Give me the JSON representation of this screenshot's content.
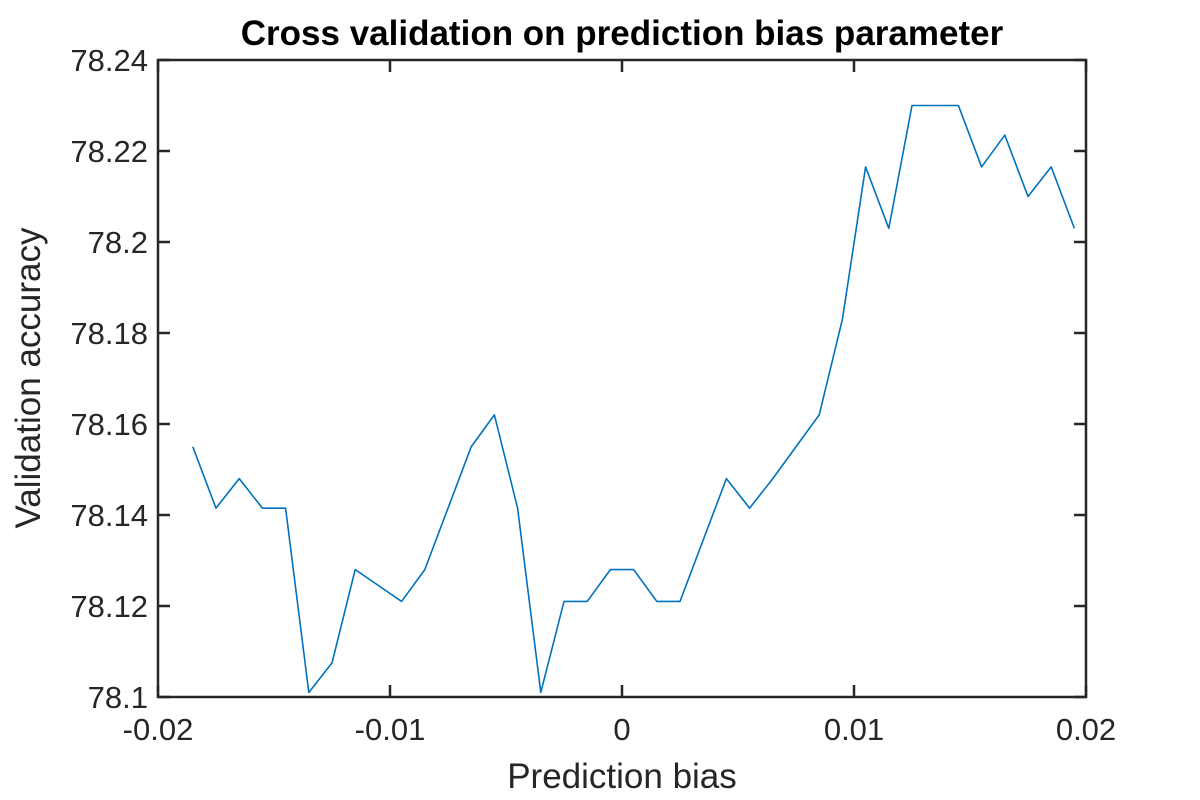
{
  "chart_data": {
    "type": "line",
    "title": "Cross validation on prediction bias parameter",
    "xlabel": "Prediction bias",
    "ylabel": "Validation accuracy",
    "xlim": [
      -0.02,
      0.02
    ],
    "ylim": [
      78.1,
      78.24
    ],
    "xticks": [
      -0.02,
      -0.01,
      0,
      0.01,
      0.02
    ],
    "xtick_labels": [
      "-0.02",
      "-0.01",
      "0",
      "0.01",
      "0.02"
    ],
    "yticks": [
      78.1,
      78.12,
      78.14,
      78.16,
      78.18,
      78.2,
      78.22,
      78.24
    ],
    "ytick_labels": [
      "78.1",
      "78.12",
      "78.14",
      "78.16",
      "78.18",
      "78.2",
      "78.22",
      "78.24"
    ],
    "grid": false,
    "colors": {
      "line": "#0072bd",
      "axes": "#262626"
    },
    "series": [
      {
        "x": [
          -0.0185,
          -0.0175,
          -0.0165,
          -0.0155,
          -0.0145,
          -0.0135,
          -0.0125,
          -0.0115,
          -0.0105,
          -0.0095,
          -0.0085,
          -0.0075,
          -0.0065,
          -0.0055,
          -0.0045,
          -0.0035,
          -0.0025,
          -0.0015,
          -0.0005,
          0.0005,
          0.0015,
          0.0025,
          0.0035,
          0.0045,
          0.0055,
          0.0065,
          0.0075,
          0.0085,
          0.0095,
          0.0105,
          0.0115,
          0.0125,
          0.0135,
          0.0145,
          0.0155,
          0.0165,
          0.0175,
          0.0185,
          0.0195
        ],
        "y": [
          78.155,
          78.1415,
          78.148,
          78.1415,
          78.1415,
          78.101,
          78.1075,
          78.128,
          78.1245,
          78.121,
          78.128,
          78.1415,
          78.155,
          78.162,
          78.1415,
          78.101,
          78.121,
          78.121,
          78.128,
          78.128,
          78.121,
          78.121,
          78.1345,
          78.148,
          78.1415,
          78.148,
          78.155,
          78.162,
          78.183,
          78.2165,
          78.203,
          78.23,
          78.23,
          78.23,
          78.2165,
          78.2235,
          78.21,
          78.2165,
          78.203
        ]
      }
    ]
  }
}
